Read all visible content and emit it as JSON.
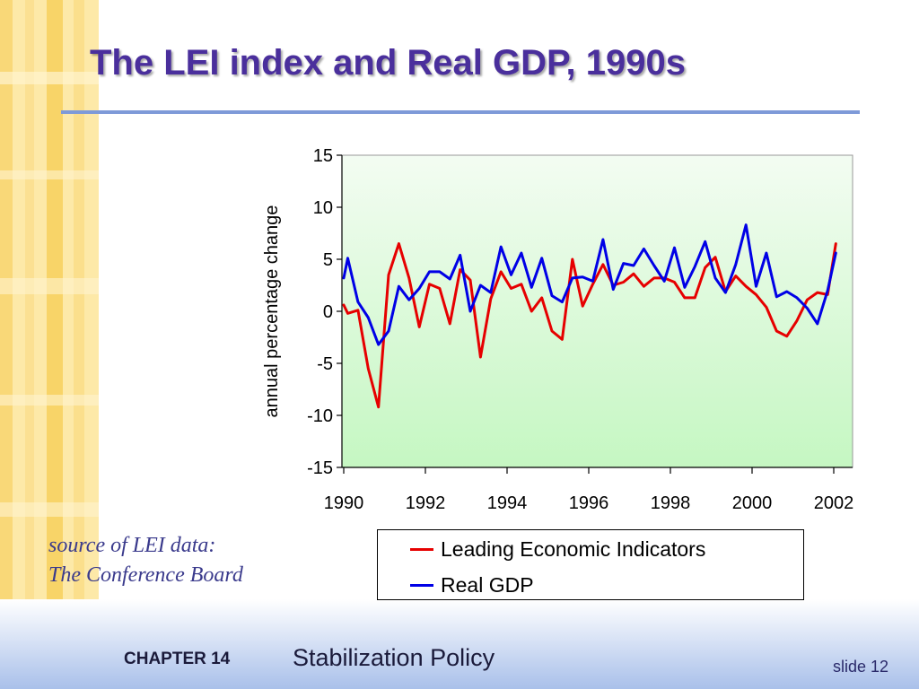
{
  "slide": {
    "title": "The LEI index and Real GDP, 1990s",
    "source_line1": "source of LEI data:",
    "source_line2": "The Conference Board",
    "footer_chapter": "CHAPTER 14",
    "footer_topic": "Stabilization Policy",
    "footer_slide": "slide 12"
  },
  "colors": {
    "title": "#4a2f9c",
    "rule": "#7e9ad8",
    "plot_bg_top": "#f3fcf2",
    "plot_bg_bottom": "#c5f7c2",
    "lei": "#e60000",
    "gdp": "#0000e6"
  },
  "chart_data": {
    "type": "line",
    "ylabel": "annual percentage change",
    "xlabel": "",
    "xlim": [
      1990,
      2002.2
    ],
    "ylim": [
      -15,
      15
    ],
    "xticks": [
      1990,
      1992,
      1994,
      1996,
      1998,
      2000,
      2002
    ],
    "yticks": [
      15,
      10,
      5,
      0,
      -5,
      -10,
      -15
    ],
    "legend_position": "bottom-right",
    "grid": false,
    "series": [
      {
        "name": "Leading Economic Indicators",
        "color": "#e60000",
        "points": [
          [
            1990,
            0.6
          ],
          [
            1990.1,
            -0.2
          ],
          [
            1990.35,
            0.1
          ],
          [
            1990.6,
            -5.5
          ],
          [
            1990.85,
            -9.2
          ],
          [
            1991.1,
            3.5
          ],
          [
            1991.35,
            6.5
          ],
          [
            1991.6,
            3.2
          ],
          [
            1991.85,
            -1.5
          ],
          [
            1992.1,
            2.6
          ],
          [
            1992.35,
            2.2
          ],
          [
            1992.6,
            -1.2
          ],
          [
            1992.85,
            4.0
          ],
          [
            1993.1,
            3.0
          ],
          [
            1993.35,
            -4.4
          ],
          [
            1993.6,
            1.2
          ],
          [
            1993.85,
            3.8
          ],
          [
            1994.1,
            2.2
          ],
          [
            1994.35,
            2.6
          ],
          [
            1994.6,
            0.0
          ],
          [
            1994.85,
            1.3
          ],
          [
            1995.1,
            -1.9
          ],
          [
            1995.35,
            -2.7
          ],
          [
            1995.6,
            5.0
          ],
          [
            1995.85,
            0.5
          ],
          [
            1996.1,
            2.6
          ],
          [
            1996.35,
            4.5
          ],
          [
            1996.6,
            2.5
          ],
          [
            1996.85,
            2.8
          ],
          [
            1997.1,
            3.6
          ],
          [
            1997.35,
            2.4
          ],
          [
            1997.6,
            3.2
          ],
          [
            1997.85,
            3.2
          ],
          [
            1998.1,
            2.8
          ],
          [
            1998.35,
            1.3
          ],
          [
            1998.6,
            1.3
          ],
          [
            1998.85,
            4.2
          ],
          [
            1999.1,
            5.2
          ],
          [
            1999.35,
            1.9
          ],
          [
            1999.6,
            3.4
          ],
          [
            1999.85,
            2.4
          ],
          [
            2000.1,
            1.6
          ],
          [
            2000.35,
            0.4
          ],
          [
            2000.6,
            -1.9
          ],
          [
            2000.85,
            -2.4
          ],
          [
            2001.1,
            -0.9
          ],
          [
            2001.35,
            1.1
          ],
          [
            2001.6,
            1.8
          ],
          [
            2001.85,
            1.6
          ],
          [
            2002.05,
            6.5
          ]
        ]
      },
      {
        "name": "Real GDP",
        "color": "#0000e6",
        "points": [
          [
            1990,
            3.2
          ],
          [
            1990.1,
            5.1
          ],
          [
            1990.35,
            0.9
          ],
          [
            1990.6,
            -0.6
          ],
          [
            1990.85,
            -3.2
          ],
          [
            1991.1,
            -1.9
          ],
          [
            1991.35,
            2.4
          ],
          [
            1991.6,
            1.1
          ],
          [
            1991.85,
            2.2
          ],
          [
            1992.1,
            3.8
          ],
          [
            1992.35,
            3.8
          ],
          [
            1992.6,
            3.1
          ],
          [
            1992.85,
            5.4
          ],
          [
            1993.1,
            0.0
          ],
          [
            1993.35,
            2.5
          ],
          [
            1993.6,
            1.8
          ],
          [
            1993.85,
            6.2
          ],
          [
            1994.1,
            3.5
          ],
          [
            1994.35,
            5.6
          ],
          [
            1994.6,
            2.3
          ],
          [
            1994.85,
            5.1
          ],
          [
            1995.1,
            1.5
          ],
          [
            1995.35,
            0.9
          ],
          [
            1995.6,
            3.2
          ],
          [
            1995.85,
            3.3
          ],
          [
            1996.1,
            2.9
          ],
          [
            1996.35,
            6.9
          ],
          [
            1996.6,
            2.1
          ],
          [
            1996.85,
            4.6
          ],
          [
            1997.1,
            4.4
          ],
          [
            1997.35,
            6.0
          ],
          [
            1997.6,
            4.4
          ],
          [
            1997.85,
            2.9
          ],
          [
            1998.1,
            6.1
          ],
          [
            1998.35,
            2.3
          ],
          [
            1998.6,
            4.3
          ],
          [
            1998.85,
            6.7
          ],
          [
            1999.1,
            3.2
          ],
          [
            1999.35,
            1.8
          ],
          [
            1999.6,
            4.5
          ],
          [
            1999.85,
            8.3
          ],
          [
            2000.1,
            2.4
          ],
          [
            2000.35,
            5.6
          ],
          [
            2000.6,
            1.4
          ],
          [
            2000.85,
            1.9
          ],
          [
            2001.1,
            1.3
          ],
          [
            2001.35,
            0.3
          ],
          [
            2001.6,
            -1.2
          ],
          [
            2001.85,
            2.0
          ],
          [
            2002.05,
            5.6
          ]
        ]
      }
    ]
  }
}
